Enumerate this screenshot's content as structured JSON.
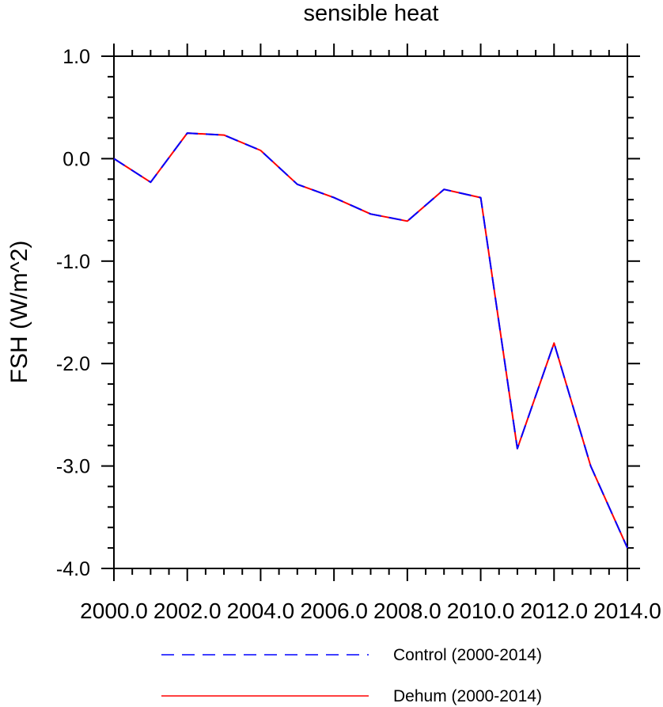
{
  "chart_data": {
    "type": "line",
    "title": "sensible heat",
    "ylabel": "FSH  (W/m^2)",
    "xlabel": "",
    "xlim": [
      2000,
      2014
    ],
    "ylim": [
      -4.0,
      1.0
    ],
    "x_ticks": [
      2000,
      2002,
      2004,
      2006,
      2008,
      2010,
      2012,
      2014
    ],
    "x_tick_labels": [
      "2000.0",
      "2002.0",
      "2004.0",
      "2006.0",
      "2008.0",
      "2010.0",
      "2012.0",
      "2014.0"
    ],
    "y_ticks": [
      1.0,
      0.0,
      -1.0,
      -2.0,
      -3.0,
      -4.0
    ],
    "y_tick_labels": [
      "1.0",
      "0.0",
      "-1.0",
      "-2.0",
      "-3.0",
      "-4.0"
    ],
    "grid": false,
    "legend_position": "bottom",
    "x": [
      2000,
      2001,
      2002,
      2003,
      2004,
      2005,
      2006,
      2007,
      2008,
      2009,
      2010,
      2011,
      2012,
      2013,
      2014
    ],
    "series": [
      {
        "name": "Control (2000-2014)",
        "color": "#0000ff",
        "dash": "dashed",
        "values": [
          0.0,
          -0.23,
          0.25,
          0.23,
          0.08,
          -0.25,
          -0.38,
          -0.54,
          -0.61,
          -0.3,
          -0.38,
          -2.83,
          -1.8,
          -3.0,
          -3.8
        ]
      },
      {
        "name": "Dehum (2000-2014)",
        "color": "#ff0000",
        "dash": "solid",
        "values": [
          0.0,
          -0.23,
          0.25,
          0.23,
          0.08,
          -0.25,
          -0.38,
          -0.54,
          -0.61,
          -0.3,
          -0.38,
          -2.83,
          -1.8,
          -3.0,
          -3.8
        ]
      }
    ]
  }
}
